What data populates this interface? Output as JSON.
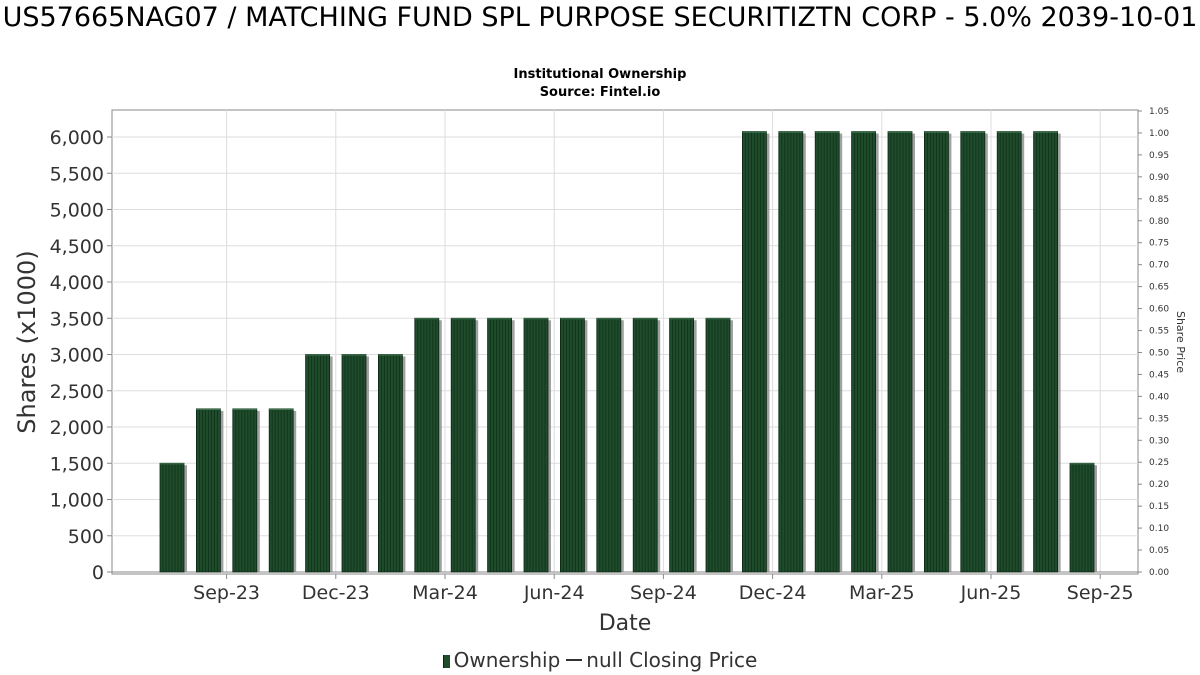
{
  "header": {
    "title": "US57665NAG07 / MATCHING FUND SPL PURPOSE SECURITIZTN CORP - 5.0% 2039-10-01",
    "subtitle": "Institutional Ownership",
    "source": "Source: Fintel.io"
  },
  "legend": {
    "ownership_label": "Ownership",
    "price_label": "null Closing Price"
  },
  "colors": {
    "bar": "#1f4d2c",
    "bar_stripe": "#0d2a17",
    "bar_shadow": "#8a8a8a",
    "grid": "#dddddd",
    "axis": "#888888"
  },
  "chart_data": {
    "type": "bar",
    "xlabel": "Date",
    "ylabel": "Shares (x1000)",
    "y2label": "Share Price",
    "ylim": [
      0,
      6250
    ],
    "y2lim": [
      0,
      1.05
    ],
    "yticks": [
      "0",
      "500",
      "1,000",
      "1,500",
      "2,000",
      "2,500",
      "3,000",
      "3,500",
      "4,000",
      "4,500",
      "5,000",
      "5,500",
      "6,000"
    ],
    "yticks_values": [
      0,
      500,
      1000,
      1500,
      2000,
      2500,
      3000,
      3500,
      4000,
      4500,
      5000,
      5500,
      6000
    ],
    "y2ticks": [
      "0.00",
      "0.05",
      "0.10",
      "0.15",
      "0.20",
      "0.25",
      "0.30",
      "0.35",
      "0.40",
      "0.45",
      "0.50",
      "0.55",
      "0.60",
      "0.65",
      "0.70",
      "0.75",
      "0.80",
      "0.85",
      "0.90",
      "0.95",
      "1.00",
      "1.05"
    ],
    "xticks": [
      "Sep-23",
      "Dec-23",
      "Mar-24",
      "Jun-24",
      "Sep-24",
      "Dec-24",
      "Mar-25",
      "Jun-25",
      "Sep-25"
    ],
    "xtick_bar_positions": [
      1.5,
      4.5,
      7.5,
      10.5,
      13.5,
      16.5,
      19.5,
      22.5,
      25.5
    ],
    "grid": true,
    "legend_position": "bottom",
    "series": [
      {
        "name": "Ownership",
        "values": [
          1500,
          2250,
          2250,
          2250,
          3000,
          3000,
          3000,
          3500,
          3500,
          3500,
          3500,
          3500,
          3500,
          3500,
          3500,
          3500,
          6075,
          6075,
          6075,
          6075,
          6075,
          6075,
          6075,
          6075,
          6075,
          1500
        ]
      }
    ]
  }
}
